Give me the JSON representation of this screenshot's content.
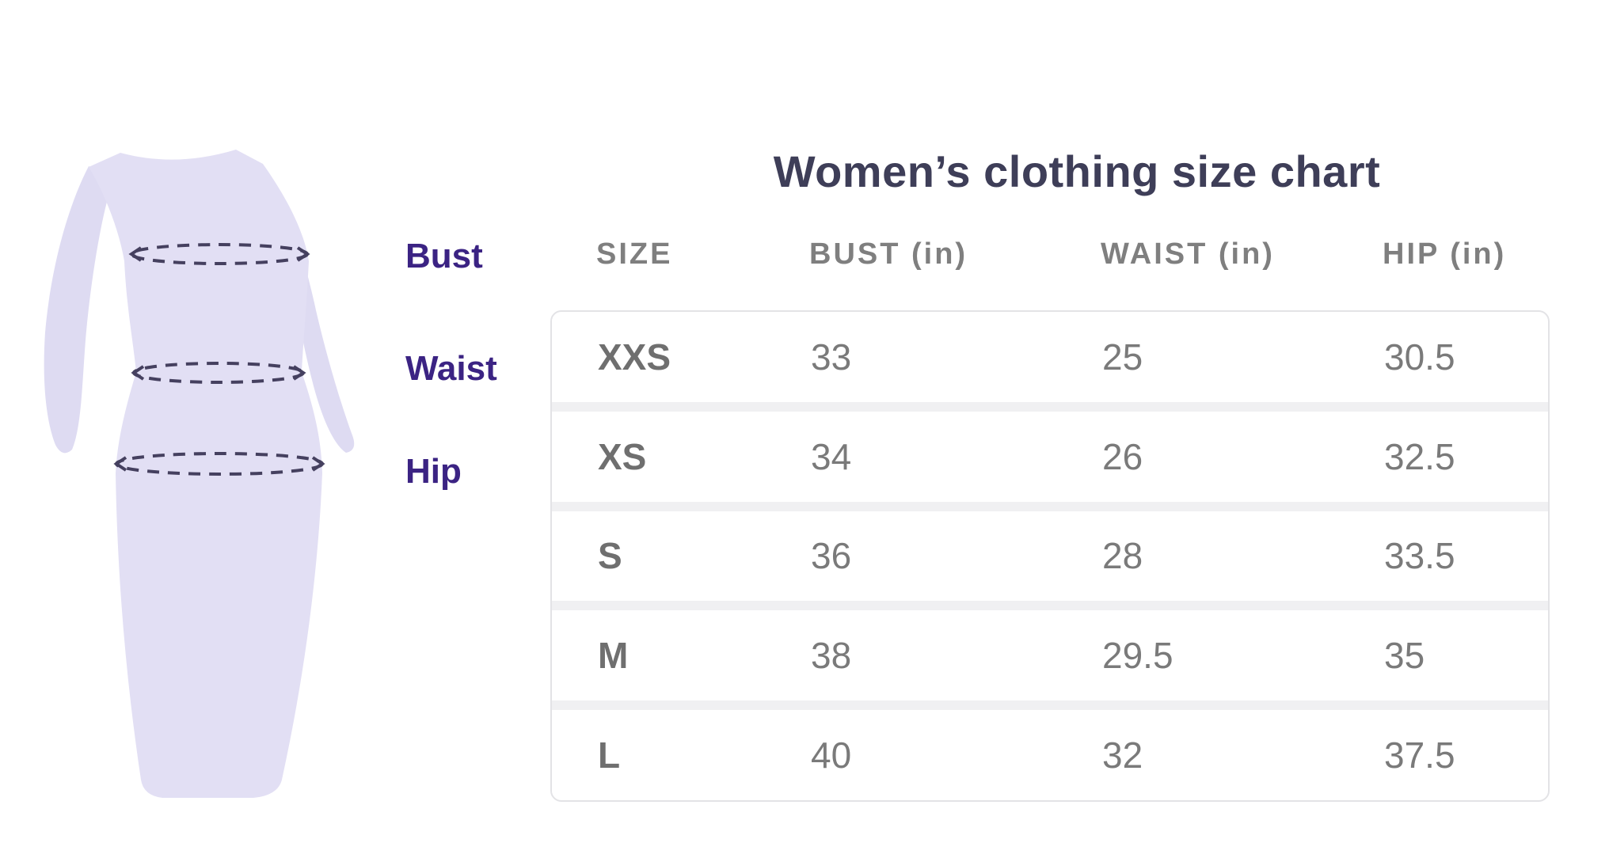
{
  "title": "Women’s clothing size chart",
  "figure": {
    "labels": {
      "bust": "Bust",
      "waist": "Waist",
      "hip": "Hip"
    }
  },
  "chart_data": {
    "type": "table",
    "title": "Women’s clothing size chart",
    "columns": [
      "SIZE",
      "BUST (in)",
      "WAIST (in)",
      "HIP (in)"
    ],
    "rows": [
      [
        "XXS",
        "33",
        "25",
        "30.5"
      ],
      [
        "XS",
        "34",
        "26",
        "32.5"
      ],
      [
        "S",
        "36",
        "28",
        "33.5"
      ],
      [
        "M",
        "38",
        "29.5",
        "35"
      ],
      [
        "L",
        "40",
        "32",
        "37.5"
      ]
    ]
  },
  "colors": {
    "page_bg": "#ffffff",
    "dress_fill": "#e2dff4",
    "sleeve_fill": "#dedbf2",
    "dash_stroke": "#45405f",
    "label_text": "#3b2383",
    "title_text": "#3e3e58",
    "header_text": "#7f7f7f",
    "size_text": "#6f6f6f",
    "value_text": "#7a7a7a",
    "card_border": "#e3e3e6",
    "row_divider": "#f0f0f2",
    "row_bg": "#ffffff"
  }
}
